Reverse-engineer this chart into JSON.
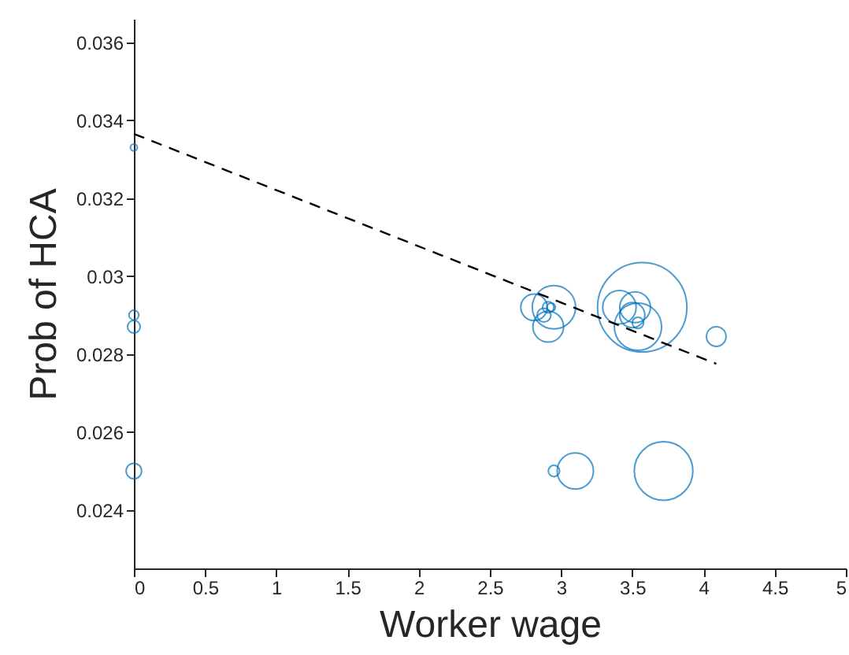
{
  "chart_data": {
    "type": "bubble",
    "xlabel": "Worker wage",
    "ylabel": "Prob of HCA",
    "xlim": [
      0,
      5
    ],
    "ylim": [
      0.0225,
      0.0366
    ],
    "xticks": [
      0,
      0.5,
      1,
      1.5,
      2,
      2.5,
      3,
      3.5,
      4,
      4.5,
      5
    ],
    "yticks": [
      0.024,
      0.026,
      0.028,
      0.03,
      0.032,
      0.034,
      0.036
    ],
    "grid": false,
    "series": [
      {
        "color": "#0072bd",
        "marker": "circle",
        "x": [
          0,
          0,
          0,
          0,
          2.81,
          2.95,
          2.91,
          2.88,
          2.91,
          2.93,
          3.57,
          3.41,
          3.52,
          3.5,
          3.54,
          3.54,
          4.09,
          2.95,
          3.1,
          3.72
        ],
        "values": [
          0.0333,
          0.029,
          0.0287,
          0.025,
          0.0292,
          0.0292,
          0.0287,
          0.029,
          0.0292,
          0.0292,
          0.0292,
          0.0292,
          0.0292,
          0.029,
          0.0287,
          0.0288,
          0.02845,
          0.025,
          0.025,
          0.025
        ],
        "sizes": [
          0.006,
          0.012,
          0.02,
          0.03,
          0.088,
          0.235,
          0.118,
          0.024,
          0.016,
          0.009,
          1,
          0.14,
          0.118,
          0.079,
          0.28,
          0.016,
          0.048,
          0.016,
          0.165,
          0.43
        ]
      },
      {
        "type": "line",
        "color": "#000000",
        "line_style": "dashed",
        "x": [
          0,
          4.09
        ],
        "values": [
          0.03365,
          0.02775
        ]
      }
    ]
  }
}
